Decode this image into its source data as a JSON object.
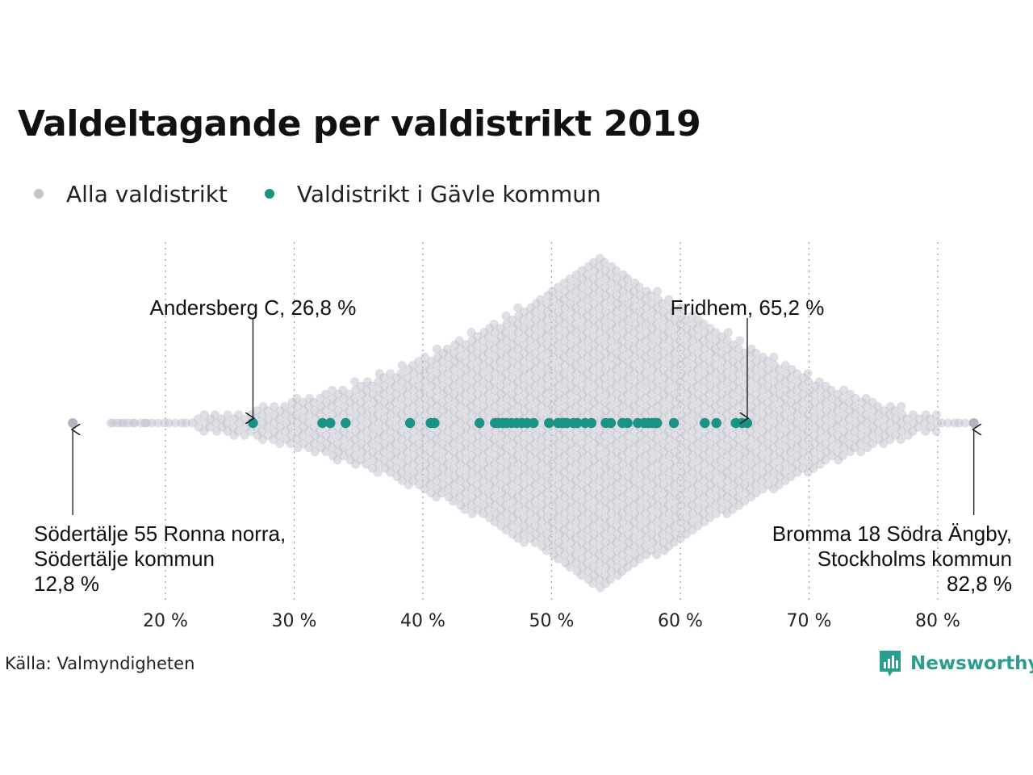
{
  "chart_data": {
    "type": "scatter",
    "subtype": "beeswarm",
    "title": "Valdeltagande per valdistrikt 2019",
    "xlabel": "",
    "ylabel": "",
    "xlim": [
      12,
      84
    ],
    "x_ticks": [
      20,
      30,
      40,
      50,
      60,
      70,
      80
    ],
    "x_tick_labels": [
      "20 %",
      "30 %",
      "40 %",
      "50 %",
      "60 %",
      "70 %",
      "80 %"
    ],
    "grid": "vertical dotted",
    "legend_placement": "top-left",
    "series": [
      {
        "name": "Alla valdistrikt",
        "color": "#c5c4d0",
        "distribution": "dense, centred near 54 %, range 12,8 % to 82,8 %",
        "values": [
          12.8,
          82.8
        ]
      },
      {
        "name": "Valdistrikt i Gävle kommun",
        "color": "#1a9384",
        "values": [
          26.8,
          32.2,
          32.8,
          34.0,
          39.0,
          40.6,
          40.9,
          44.4,
          45.6,
          45.9,
          46.2,
          46.5,
          46.9,
          47.3,
          47.7,
          48.1,
          48.6,
          49.8,
          50.5,
          50.8,
          51.0,
          51.2,
          51.7,
          52.0,
          52.6,
          53.1,
          54.2,
          54.6,
          55.5,
          55.9,
          56.7,
          57.2,
          57.5,
          57.8,
          58.0,
          58.2,
          59.5,
          61.9,
          62.8,
          64.3,
          64.8,
          65.2
        ]
      }
    ],
    "annotations": [
      {
        "id": "min",
        "line1": "Södertälje 55 Ronna norra,",
        "line2": "Södertälje kommun",
        "line3": "12,8 %",
        "value": 12.8
      },
      {
        "id": "max",
        "line1": "Bromma 18 Södra Ängby,",
        "line2": "Stockholms kommun",
        "line3": "82,8 %",
        "value": 82.8
      },
      {
        "id": "gavle_min",
        "text": "Andersberg C, 26,8 %",
        "value": 26.8
      },
      {
        "id": "gavle_max",
        "text": "Fridhem, 65,2 %",
        "value": 65.2
      }
    ],
    "source": "Källa: Valmyndigheten",
    "brand": "Newsworthy"
  },
  "colors": {
    "all": "#c5c4d0",
    "gavle": "#1a9384",
    "brand": "#2a9d8f"
  }
}
